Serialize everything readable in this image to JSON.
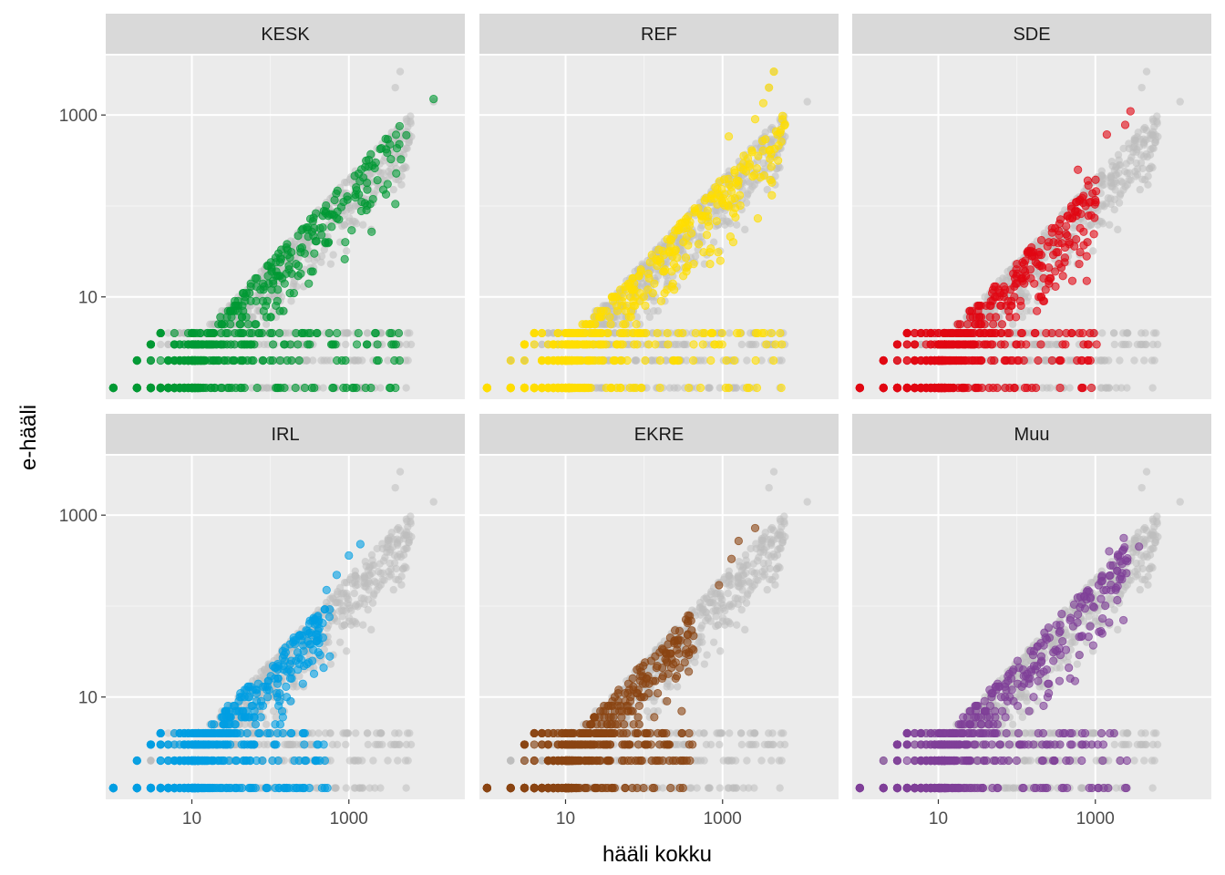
{
  "chart_data": {
    "type": "scatter",
    "facet_layout": "2x3",
    "xlabel": "hääli kokku",
    "ylabel": "e-hääli",
    "x_scale": "log10",
    "y_scale": "log10",
    "xlim": [
      0.8,
      30000
    ],
    "ylim": [
      0.75,
      4500
    ],
    "x_ticks": [
      10,
      1000
    ],
    "x_tick_labels": [
      "10",
      "1000"
    ],
    "y_ticks": [
      10,
      1000
    ],
    "y_tick_labels": [
      "10",
      "1000"
    ],
    "grid": true,
    "background_color": "#ebebeb",
    "strip_color": "#d9d9d9",
    "gray_color": "#bebebe",
    "panels": [
      {
        "name": "KESK",
        "color": "#009933",
        "reach": 0.95,
        "outlier": [
          12000,
          1500
        ],
        "high_points": [
          [
            5400,
            600
          ],
          [
            2200,
            300
          ],
          [
            1900,
            370
          ],
          [
            1700,
            180
          ],
          [
            900,
            40
          ]
        ]
      },
      {
        "name": "REF",
        "color": "#ffde00",
        "reach": 1.0,
        "outlier": null,
        "high_points": [
          [
            4500,
            3000
          ],
          [
            3900,
            2000
          ],
          [
            3300,
            1350
          ],
          [
            2600,
            900
          ],
          [
            1200,
            580
          ]
        ]
      },
      {
        "name": "SDE",
        "color": "#e10613",
        "reach": 0.7,
        "outlier": null,
        "high_points": [
          [
            2800,
            1100
          ],
          [
            2400,
            780
          ],
          [
            1400,
            610
          ],
          [
            800,
            190
          ],
          [
            600,
            250
          ]
        ]
      },
      {
        "name": "IRL",
        "color": "#009fe3",
        "reach": 0.6,
        "outlier": null,
        "high_points": [
          [
            1400,
            480
          ],
          [
            1000,
            360
          ],
          [
            700,
            220
          ],
          [
            520,
            150
          ]
        ]
      },
      {
        "name": "EKRE",
        "color": "#8b4513",
        "reach": 0.55,
        "outlier": null,
        "high_points": [
          [
            2600,
            720
          ],
          [
            1600,
            520
          ],
          [
            1300,
            330
          ],
          [
            900,
            170
          ]
        ]
      },
      {
        "name": "Muu",
        "color": "#7f3f98",
        "reach": 0.85,
        "outlier": null,
        "high_points": [
          [
            3600,
            450
          ],
          [
            2300,
            560
          ],
          [
            1500,
            400
          ],
          [
            1100,
            170
          ]
        ]
      }
    ],
    "gray_extremes": [
      [
        12000,
        1400
      ],
      [
        4500,
        3000
      ],
      [
        3900,
        2000
      ],
      [
        5400,
        900
      ],
      [
        5400,
        600
      ]
    ]
  }
}
